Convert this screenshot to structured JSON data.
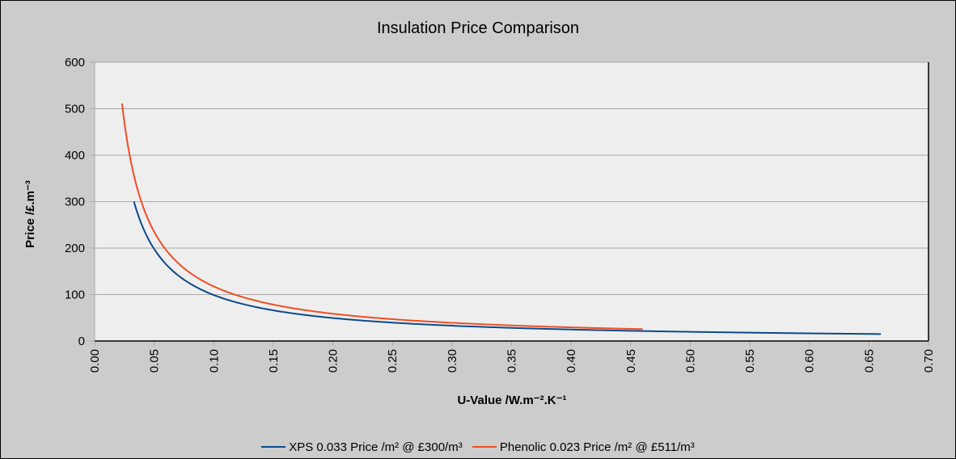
{
  "chart_data": {
    "type": "line",
    "title": "Insulation Price Comparison",
    "xlabel": "U-Value /W.m⁻².K⁻¹",
    "ylabel": "Price /£.m⁻³",
    "xlim": [
      0,
      0.7
    ],
    "ylim": [
      0,
      600
    ],
    "xticks": [
      "0.00",
      "0.05",
      "0.10",
      "0.15",
      "0.20",
      "0.25",
      "0.30",
      "0.35",
      "0.40",
      "0.45",
      "0.50",
      "0.55",
      "0.60",
      "0.65",
      "0.70"
    ],
    "yticks": [
      "0",
      "100",
      "200",
      "300",
      "400",
      "500",
      "600"
    ],
    "grid": true,
    "legend_position": "bottom",
    "series": [
      {
        "name": "XPS 0.033 Price /m² @ £300/m³",
        "color": "#0b4a8b",
        "formula_k": 9.9,
        "x_range": [
          0.033,
          0.66
        ],
        "points": [
          [
            0.033,
            300
          ],
          [
            0.05,
            198
          ],
          [
            0.1,
            99
          ],
          [
            0.15,
            66
          ],
          [
            0.2,
            49.5
          ],
          [
            0.3,
            33
          ],
          [
            0.4,
            24.8
          ],
          [
            0.5,
            19.8
          ],
          [
            0.6,
            16.5
          ],
          [
            0.66,
            15
          ]
        ]
      },
      {
        "name": "Phenolic 0.023 Price /m² @ £511/m³",
        "color": "#f04e23",
        "formula_k": 11.753,
        "x_range": [
          0.023,
          0.46
        ],
        "points": [
          [
            0.023,
            511
          ],
          [
            0.05,
            235
          ],
          [
            0.1,
            117.5
          ],
          [
            0.15,
            78.4
          ],
          [
            0.2,
            58.8
          ],
          [
            0.3,
            39.2
          ],
          [
            0.4,
            29.4
          ],
          [
            0.46,
            25.6
          ]
        ]
      }
    ]
  }
}
